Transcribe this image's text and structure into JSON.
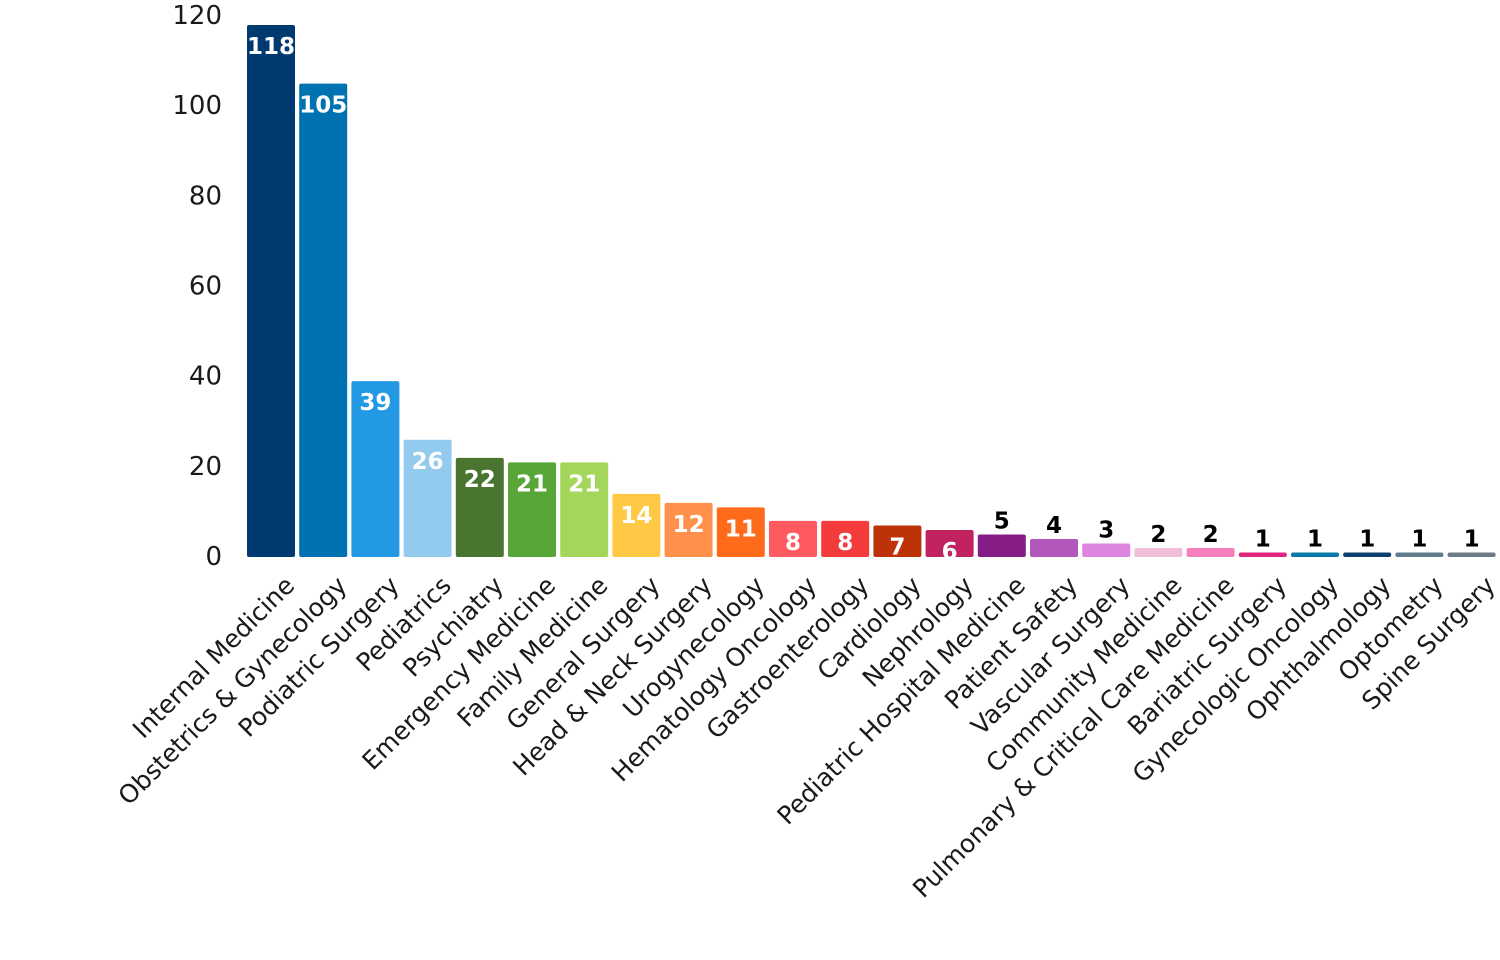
{
  "chart_data": {
    "type": "bar",
    "title": "",
    "xlabel": "",
    "ylabel": "",
    "ylim": [
      0,
      120
    ],
    "yticks": [
      0,
      20,
      40,
      60,
      80,
      100,
      120
    ],
    "grid": false,
    "legend": "none",
    "categories": [
      "Internal Medicine",
      "Obstetrics & Gynecology",
      "Podiatric Surgery",
      "Pediatrics",
      "Psychiatry",
      "Emergency Medicine",
      "Family Medicine",
      "General Surgery",
      "Head & Neck Surgery",
      "Urogynecology",
      "Hematology Oncology",
      "Gastroenterology",
      "Cardiology",
      "Nephrology",
      "Pediatric Hospital Medicine",
      "Patient Safety",
      "Vascular Surgery",
      "Community Medicine",
      "Pulmonary & Critical Care Medicine",
      "Bariatric Surgery",
      "Gynecologic Oncology",
      "Ophthalmology",
      "Optometry",
      "Spine Surgery"
    ],
    "values": [
      118,
      105,
      39,
      26,
      22,
      21,
      21,
      14,
      12,
      11,
      8,
      8,
      7,
      6,
      5,
      4,
      3,
      2,
      2,
      1,
      1,
      1,
      1,
      1
    ],
    "colors": [
      "#003A70",
      "#0072B1",
      "#2399E6",
      "#93CBEF",
      "#4A7530",
      "#58A638",
      "#A3D65A",
      "#FFC845",
      "#FF914D",
      "#FF6B1A",
      "#FF5A5F",
      "#F43B3B",
      "#BE3208",
      "#C02360",
      "#861C85",
      "#B357BD",
      "#DE85DF",
      "#F0BDD7",
      "#F77FBE",
      "#E0257E",
      "#0A78A8",
      "#0C3F6B",
      "#5E7C8C",
      "#6E7A86"
    ],
    "label_positions": [
      "inside",
      "inside",
      "inside",
      "inside",
      "inside",
      "inside",
      "inside",
      "inside",
      "inside",
      "inside",
      "inside",
      "inside",
      "inside",
      "inside",
      "outside",
      "outside",
      "outside",
      "outside",
      "outside",
      "outside",
      "outside",
      "outside",
      "outside",
      "outside"
    ],
    "label_colors": {
      "inside": "#ffffff",
      "outside": "#000000"
    }
  }
}
